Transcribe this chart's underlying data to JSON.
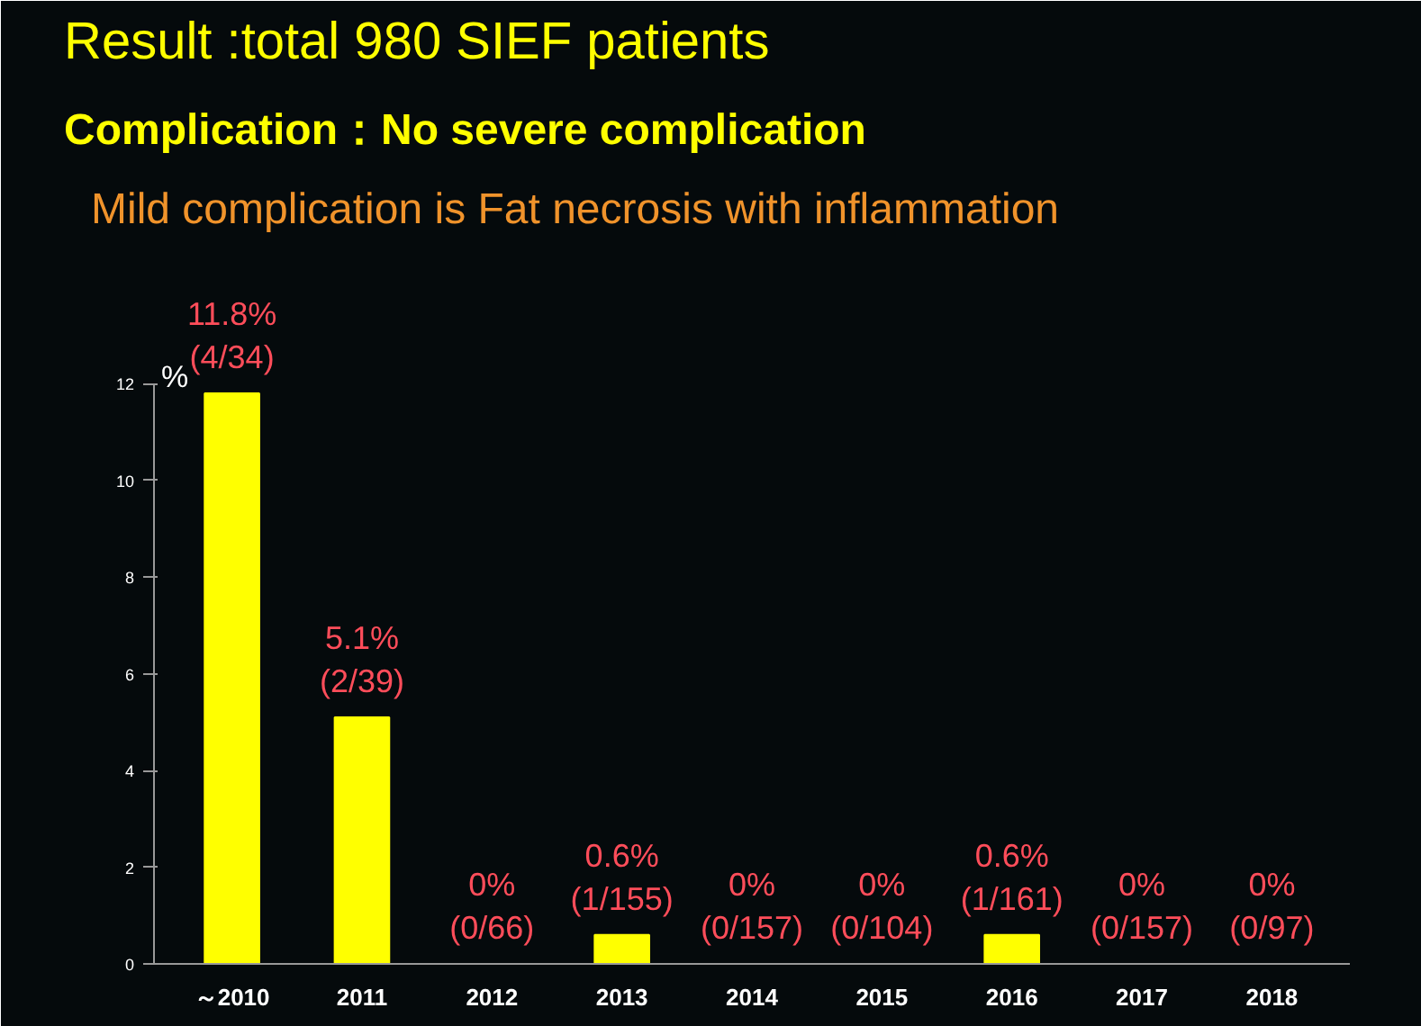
{
  "chart_data": {
    "type": "bar",
    "title": "Result :total 980 SIEF patients",
    "subtitle": "Complication：No severe complication",
    "annotations": [
      "Mild complication is Fat necrosis with inflammation"
    ],
    "ylabel": "%",
    "categories": [
      "～2010",
      "2011",
      "2012",
      "2013",
      "2014",
      "2015",
      "2016",
      "2017",
      "2018"
    ],
    "values": [
      11.8,
      5.1,
      0,
      0.6,
      0,
      0,
      0.6,
      0,
      0
    ],
    "color": "#ffff00",
    "value_labels": [
      "11.8%\n(4/34)",
      "5.1%\n(2/39)",
      "0%\n(0/66)",
      "0.6%\n(1/155)",
      "0%\n(0/157)",
      "0%\n(0/104)",
      "0.6%\n(1/161)",
      "0%\n(0/157)",
      "0%\n(0/97)"
    ],
    "ylim": [
      0,
      12
    ],
    "yticks": [
      0,
      2,
      4,
      6,
      8,
      10,
      12
    ],
    "grid": false
  }
}
